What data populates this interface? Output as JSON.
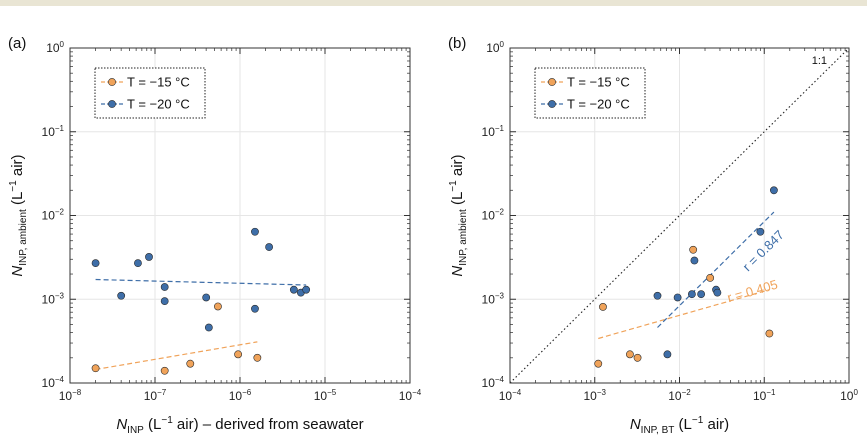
{
  "chart_data": [
    {
      "type": "scatter",
      "panel_label": "(a)",
      "xscale": "log",
      "yscale": "log",
      "xlim": [
        1e-08,
        0.0001
      ],
      "ylim": [
        0.0001,
        1
      ],
      "x_ticks": [
        {
          "v": 1e-08,
          "exp": "−8"
        },
        {
          "v": 1e-07,
          "exp": "−7"
        },
        {
          "v": 1e-06,
          "exp": "−6"
        },
        {
          "v": 1e-05,
          "exp": "−5"
        },
        {
          "v": 0.0001,
          "exp": "−4"
        }
      ],
      "y_ticks": [
        {
          "v": 0.0001,
          "exp": "−4"
        },
        {
          "v": 0.001,
          "exp": "−3"
        },
        {
          "v": 0.01,
          "exp": "−2"
        },
        {
          "v": 0.1,
          "exp": "−1"
        },
        {
          "v": 1,
          "exp": "0"
        }
      ],
      "tick_base": "10",
      "grid": true,
      "legend_position": "top-left",
      "xlabel": {
        "main": "N",
        "sub": "INP",
        "rest": " (L",
        "exp": "−1",
        "tail": " air) – derived from seawater"
      },
      "ylabel": {
        "main": "N",
        "sub": "INP, ambient",
        "rest": " (L",
        "exp": "−1",
        "tail": " air)"
      },
      "series": [
        {
          "name": "T = −15 °C",
          "color": "#f0a35a",
          "points": [
            [
              2e-08,
              0.00015
            ],
            [
              1.3e-07,
              0.00014
            ],
            [
              2.6e-07,
              0.00017
            ],
            [
              5.5e-07,
              0.00082
            ],
            [
              9.5e-07,
              0.00022
            ],
            [
              1.6e-06,
              0.0002
            ]
          ],
          "fit": [
            [
              2e-08,
              0.000145
            ],
            [
              1.6e-06,
              0.00031
            ]
          ]
        },
        {
          "name": "T = −20 °C",
          "color": "#3e6ea8",
          "points": [
            [
              2e-08,
              0.0027
            ],
            [
              4e-08,
              0.0011
            ],
            [
              6.3e-08,
              0.0027
            ],
            [
              8.5e-08,
              0.0032
            ],
            [
              1.3e-07,
              0.0014
            ],
            [
              1.3e-07,
              0.00095
            ],
            [
              4e-07,
              0.00105
            ],
            [
              4.3e-07,
              0.00046
            ],
            [
              1.5e-06,
              0.0064
            ],
            [
              1.5e-06,
              0.00077
            ],
            [
              2.2e-06,
              0.0042
            ],
            [
              4.3e-06,
              0.0013
            ],
            [
              5.2e-06,
              0.0012
            ],
            [
              6e-06,
              0.0013
            ]
          ],
          "fit": [
            [
              2e-08,
              0.00172
            ],
            [
              6e-06,
              0.00148
            ]
          ]
        }
      ]
    },
    {
      "type": "scatter",
      "panel_label": "(b)",
      "xscale": "log",
      "yscale": "log",
      "xlim": [
        0.0001,
        1
      ],
      "ylim": [
        0.0001,
        1
      ],
      "x_ticks": [
        {
          "v": 0.0001,
          "exp": "−4"
        },
        {
          "v": 0.001,
          "exp": "−3"
        },
        {
          "v": 0.01,
          "exp": "−2"
        },
        {
          "v": 0.1,
          "exp": "−1"
        },
        {
          "v": 1,
          "exp": "0"
        }
      ],
      "y_ticks": [
        {
          "v": 0.0001,
          "exp": "−4"
        },
        {
          "v": 0.001,
          "exp": "−3"
        },
        {
          "v": 0.01,
          "exp": "−2"
        },
        {
          "v": 0.1,
          "exp": "−1"
        },
        {
          "v": 1,
          "exp": "0"
        }
      ],
      "tick_base": "10",
      "grid": true,
      "legend_position": "top-left",
      "xlabel": {
        "main": "N",
        "sub": "INP, BT",
        "rest": " (L",
        "exp": "−1",
        "tail": " air)"
      },
      "ylabel": {
        "main": "N",
        "sub": "INP, ambient",
        "rest": " (L",
        "exp": "−1",
        "tail": " air)"
      },
      "reference_line": {
        "label": "1:1",
        "points": [
          [
            0.0001,
            0.0001
          ],
          [
            1,
            1
          ]
        ]
      },
      "series": [
        {
          "name": "T = −15 °C",
          "color": "#f0a35a",
          "points": [
            [
              0.0011,
              0.00017
            ],
            [
              0.00125,
              0.00081
            ],
            [
              0.0026,
              0.00022
            ],
            [
              0.0032,
              0.0002
            ],
            [
              0.0145,
              0.0039
            ],
            [
              0.023,
              0.0018
            ],
            [
              0.115,
              0.00039
            ]
          ],
          "fit": [
            [
              0.0011,
              0.00034
            ],
            [
              0.115,
              0.0013
            ]
          ],
          "r_label": "r = 0.405"
        },
        {
          "name": "T = −20 °C",
          "color": "#3e6ea8",
          "points": [
            [
              0.0055,
              0.0011
            ],
            [
              0.0072,
              0.00022
            ],
            [
              0.0095,
              0.00105
            ],
            [
              0.014,
              0.00115
            ],
            [
              0.015,
              0.0029
            ],
            [
              0.018,
              0.00115
            ],
            [
              0.027,
              0.0013
            ],
            [
              0.028,
              0.0012
            ],
            [
              0.09,
              0.0064
            ],
            [
              0.13,
              0.02
            ]
          ],
          "fit": [
            [
              0.0055,
              0.00046
            ],
            [
              0.13,
              0.011
            ]
          ],
          "r_label": "r = 0.847"
        }
      ]
    }
  ]
}
